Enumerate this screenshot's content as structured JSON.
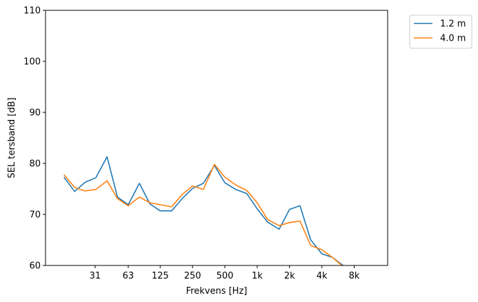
{
  "chart_data": {
    "type": "line",
    "xlabel": "Frekvens [Hz]",
    "ylabel": "SEL tersband [dB]",
    "ylim": [
      60,
      110
    ],
    "y_ticks": [
      60,
      70,
      80,
      90,
      100,
      110
    ],
    "x_scale": "log",
    "x_ticks": [
      {
        "value": 31,
        "label": "31"
      },
      {
        "value": 63,
        "label": "63"
      },
      {
        "value": 125,
        "label": "125"
      },
      {
        "value": 250,
        "label": "250"
      },
      {
        "value": 500,
        "label": "500"
      },
      {
        "value": 1000,
        "label": "1k"
      },
      {
        "value": 2000,
        "label": "2k"
      },
      {
        "value": 4000,
        "label": "4k"
      },
      {
        "value": 8000,
        "label": "8k"
      }
    ],
    "x": [
      16,
      20,
      25,
      31.5,
      40,
      50,
      63,
      80,
      100,
      125,
      160,
      200,
      250,
      315,
      400,
      500,
      630,
      800,
      1000,
      1250,
      1600,
      2000,
      2500,
      3150,
      4000,
      5000,
      6300,
      8000
    ],
    "series": [
      {
        "name": "1.2 m",
        "color": "#1f77b4",
        "values": [
          77.2,
          74.5,
          76.3,
          77.2,
          81.3,
          73.4,
          71.9,
          76.1,
          72.1,
          70.7,
          70.7,
          73.1,
          75.1,
          76.1,
          79.6,
          76.2,
          74.9,
          74.1,
          71.1,
          68.5,
          67.1,
          71.0,
          71.7,
          65.0,
          62.3,
          61.6,
          60.0,
          58.8
        ]
      },
      {
        "name": "4.0 m",
        "color": "#ff7f0e",
        "values": [
          77.7,
          75.3,
          74.6,
          74.9,
          76.6,
          73.1,
          71.7,
          73.4,
          72.3,
          71.9,
          71.5,
          73.9,
          75.6,
          74.9,
          79.8,
          77.3,
          75.8,
          74.7,
          72.3,
          69.0,
          67.8,
          68.4,
          68.7,
          63.9,
          63.1,
          61.6,
          59.8,
          59.0
        ]
      }
    ],
    "legend": "outside-top-right",
    "grid": false
  }
}
